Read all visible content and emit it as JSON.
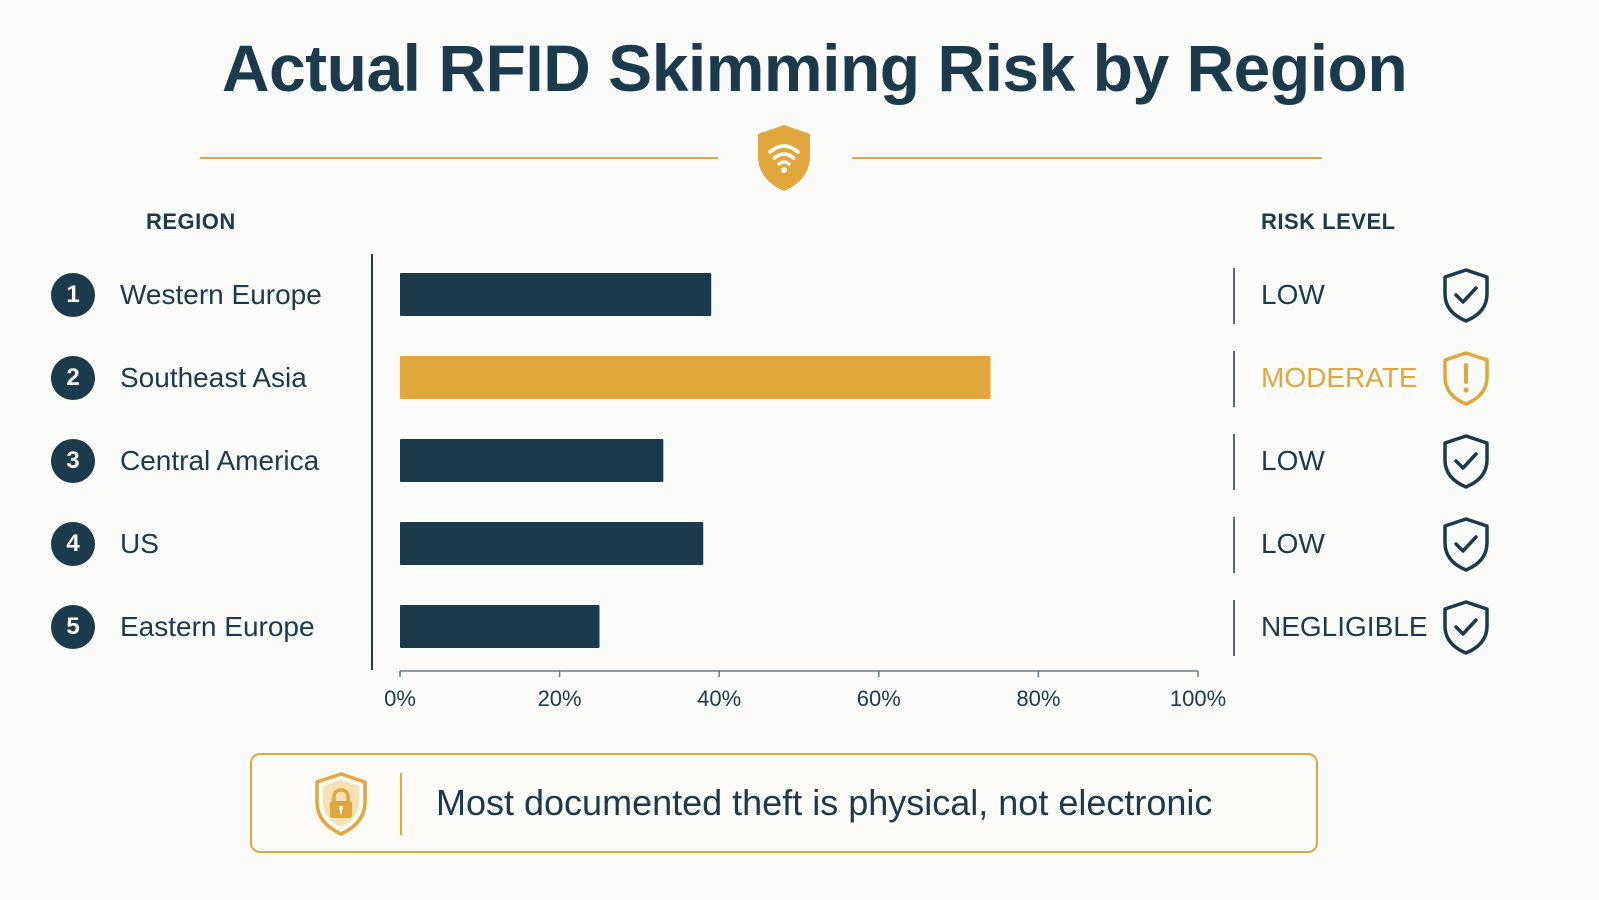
{
  "title": "Actual RFID Skimming Risk by Region",
  "headers": {
    "region": "REGION",
    "risk_level": "RISK LEVEL"
  },
  "rows": [
    {
      "number": "1",
      "region": "Western Europe",
      "risk": "LOW",
      "risk_icon": "shield-check-icon"
    },
    {
      "number": "2",
      "region": "Southeast Asia",
      "risk": "MODERATE",
      "risk_icon": "shield-exclamation-icon"
    },
    {
      "number": "3",
      "region": "Central America",
      "risk": "LOW",
      "risk_icon": "shield-check-icon"
    },
    {
      "number": "4",
      "region": "US",
      "risk": "LOW",
      "risk_icon": "shield-check-icon"
    },
    {
      "number": "5",
      "region": "Eastern Europe",
      "risk": "NEGLIGIBLE",
      "risk_icon": "shield-check-icon"
    }
  ],
  "callout": {
    "text": "Most documented theft is physical, not electronic",
    "icon": "shield-lock-icon"
  },
  "colors": {
    "navy": "#1b3a4b",
    "gold": "#e2a73c"
  },
  "chart_data": {
    "type": "bar",
    "orientation": "horizontal",
    "categories": [
      "Western Europe",
      "Southeast Asia",
      "Central America",
      "US",
      "Eastern Europe"
    ],
    "values": [
      39,
      74,
      33,
      38,
      25
    ],
    "highlight_index": 1,
    "xlim": [
      0,
      100
    ],
    "x_ticks": [
      "0%",
      "20%",
      "40%",
      "60%",
      "80%",
      "100%"
    ],
    "x_tick_values": [
      0,
      20,
      40,
      60,
      80,
      100
    ],
    "grid": false
  }
}
